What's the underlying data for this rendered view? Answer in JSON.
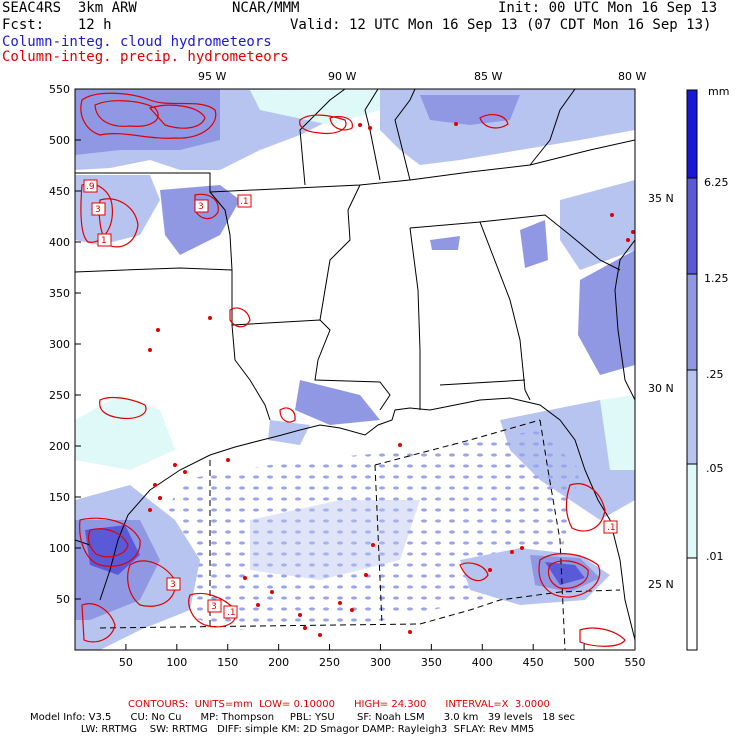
{
  "header": {
    "left_line1": "SEAC4RS  3km ARW",
    "center_line1": "NCAR/MMM",
    "right_line1": "Init: 00 UTC Mon 16 Sep 13",
    "left_line2": "Fcst:    12 h",
    "right_line2": "Valid: 12 UTC Mon 16 Sep 13 (07 CDT Mon 16 Sep 13)",
    "legend_blue": "Column-integ. cloud hydrometeors",
    "legend_red": "Column-integ. precip. hydrometeors"
  },
  "colors": {
    "blue_legend": "#1a1ad0",
    "red_legend": "#e00000",
    "shade_001": "#dff8f8",
    "shade_005": "#b8c4f0",
    "shade_025": "#9098e4",
    "shade_125": "#5a5ad8",
    "shade_625": "#1818d8"
  },
  "map": {
    "lon_labels": [
      "95 W",
      "90 W",
      "85 W",
      "80 W"
    ],
    "lat_labels": [
      "35 N",
      "30 N",
      "25 N"
    ],
    "x_ticks": [
      "50",
      "100",
      "150",
      "200",
      "250",
      "300",
      "350",
      "400",
      "450",
      "500",
      "550"
    ],
    "y_ticks": [
      "550",
      "500",
      "450",
      "400",
      "350",
      "300",
      "250",
      "200",
      "150",
      "100",
      "50"
    ],
    "contour_labels": [
      ".9",
      "3",
      "3",
      ".1",
      "1",
      ".1",
      "3",
      "3",
      ".1"
    ]
  },
  "colorbar": {
    "unit": "mm",
    "labels": [
      "6.25",
      "1.25",
      ".25",
      ".05",
      ".01"
    ]
  },
  "footer": {
    "contours_line": "CONTOURS:  UNITS=mm  LOW= 0.10000      HIGH= 24.300      INTERVAL=X  3.0000",
    "model_line1": "Model Info: V3.5      CU: No Cu      MP: Thompson     PBL: YSU       SF: Noah LSM      3.0 km   39 levels   18 sec",
    "model_line2": "                LW: RRTMG    SW: RRTMG   DIFF: simple KM: 2D Smagor DAMP: Rayleigh3  SFLAY: Rev MM5"
  }
}
